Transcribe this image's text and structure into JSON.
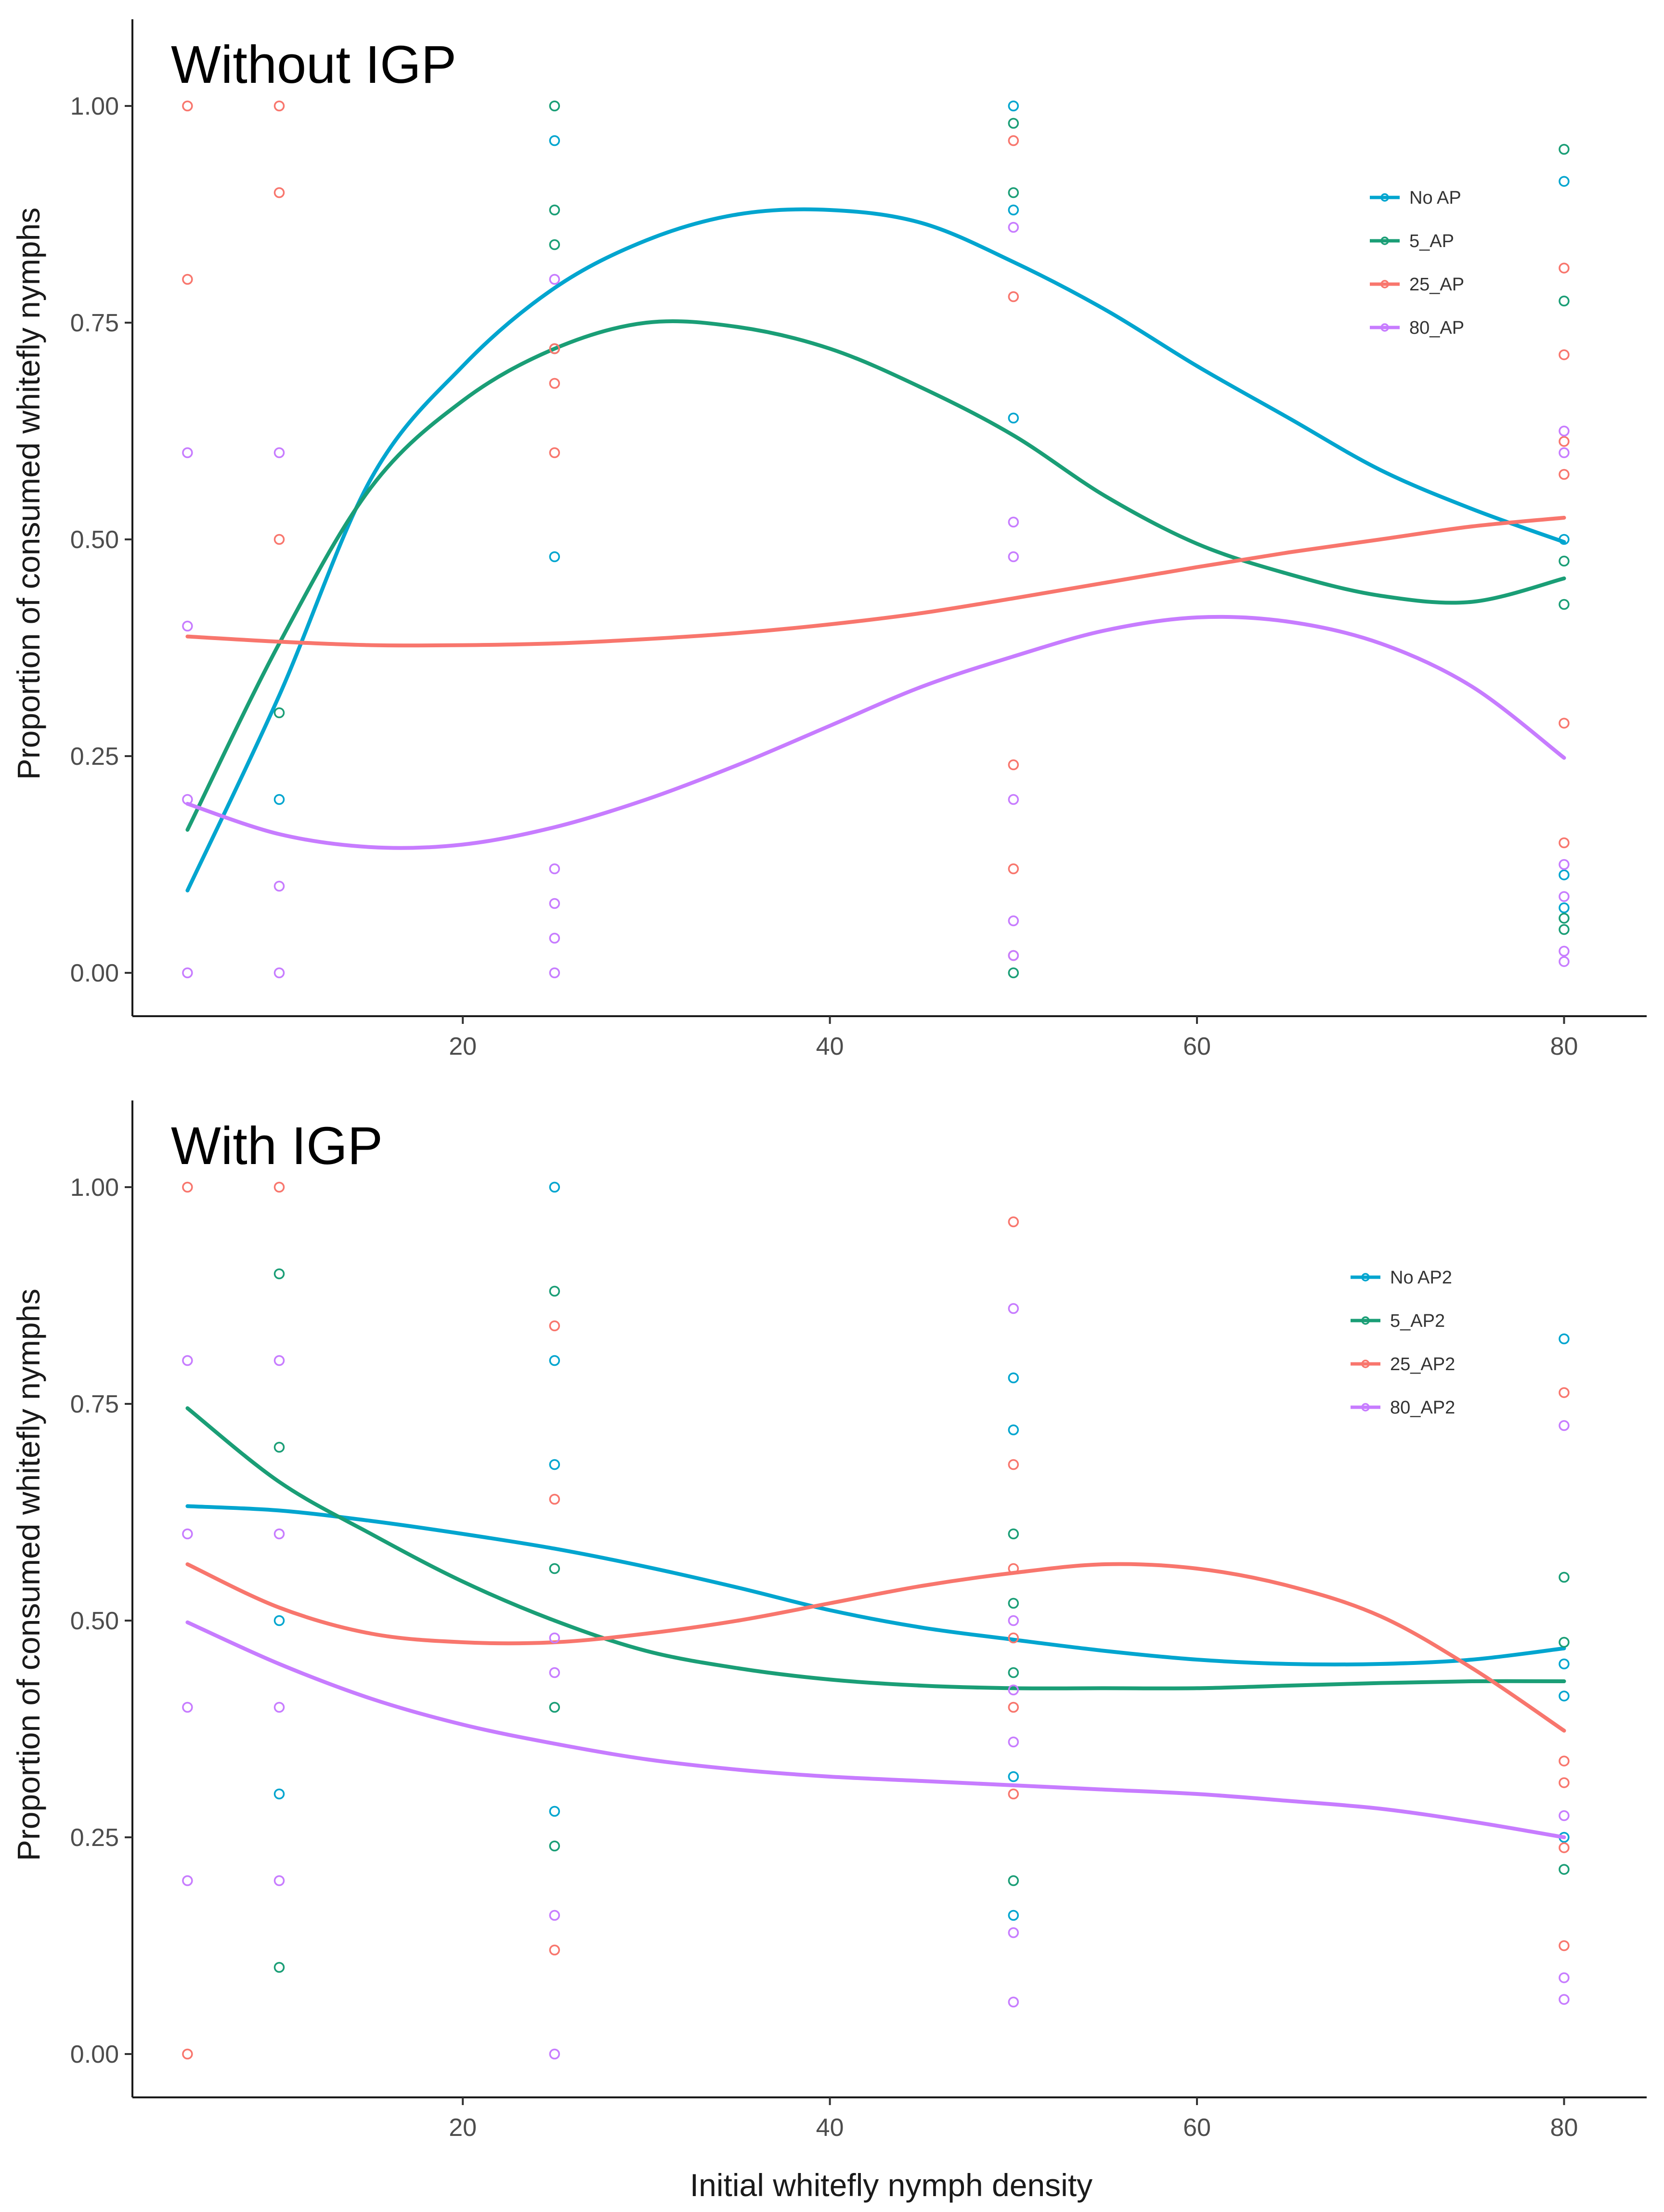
{
  "chart_data": [
    {
      "type": "scatter",
      "title": "Without IGP",
      "xlabel": "",
      "ylabel": "Proportion of consumed whitefly nymphs",
      "xlim": [
        2,
        84.5
      ],
      "ylim": [
        -0.05,
        1.1
      ],
      "xticks": [
        20,
        40,
        60,
        80
      ],
      "xtick_labels": [
        "20",
        "40",
        "60",
        "80"
      ],
      "yticks": [
        0,
        0.25,
        0.5,
        0.75,
        1.0
      ],
      "ytick_labels": [
        "0.00",
        "0.25",
        "0.50",
        "0.75",
        "1.00"
      ],
      "grid": false,
      "legend_position": "right",
      "series": [
        {
          "name": "No AP",
          "color": "#00A5CF",
          "points": [
            [
              10,
              0.2
            ],
            [
              25,
              0.96
            ],
            [
              25,
              0.48
            ],
            [
              50,
              1.0
            ],
            [
              50,
              0.88
            ],
            [
              50,
              0.64
            ],
            [
              80,
              0.913
            ],
            [
              80,
              0.5
            ],
            [
              80,
              0.113
            ],
            [
              80,
              0.075
            ]
          ],
          "curve": [
            [
              5,
              0.095
            ],
            [
              10,
              0.32
            ],
            [
              15,
              0.57
            ],
            [
              20,
              0.7
            ],
            [
              25,
              0.79
            ],
            [
              30,
              0.845
            ],
            [
              35,
              0.875
            ],
            [
              40,
              0.88
            ],
            [
              45,
              0.865
            ],
            [
              50,
              0.82
            ],
            [
              55,
              0.765
            ],
            [
              60,
              0.7
            ],
            [
              65,
              0.64
            ],
            [
              70,
              0.58
            ],
            [
              75,
              0.535
            ],
            [
              80,
              0.497
            ]
          ]
        },
        {
          "name": "5_AP",
          "color": "#1A9E76",
          "points": [
            [
              10,
              0.3
            ],
            [
              25,
              1.0
            ],
            [
              25,
              0.88
            ],
            [
              25,
              0.84
            ],
            [
              25,
              0.72
            ],
            [
              50,
              0.98
            ],
            [
              50,
              0.9
            ],
            [
              50,
              0.0
            ],
            [
              80,
              0.95
            ],
            [
              80,
              0.775
            ],
            [
              80,
              0.475
            ],
            [
              80,
              0.425
            ],
            [
              80,
              0.063
            ],
            [
              80,
              0.05
            ]
          ],
          "curve": [
            [
              5,
              0.165
            ],
            [
              10,
              0.38
            ],
            [
              15,
              0.56
            ],
            [
              20,
              0.66
            ],
            [
              25,
              0.72
            ],
            [
              30,
              0.75
            ],
            [
              35,
              0.745
            ],
            [
              40,
              0.72
            ],
            [
              45,
              0.675
            ],
            [
              50,
              0.62
            ],
            [
              55,
              0.55
            ],
            [
              60,
              0.495
            ],
            [
              65,
              0.46
            ],
            [
              70,
              0.435
            ],
            [
              75,
              0.428
            ],
            [
              80,
              0.455
            ]
          ]
        },
        {
          "name": "25_AP",
          "color": "#F8766D",
          "points": [
            [
              5,
              1.0
            ],
            [
              5,
              0.8
            ],
            [
              10,
              1.0
            ],
            [
              10,
              0.9
            ],
            [
              10,
              0.5
            ],
            [
              25,
              0.72
            ],
            [
              25,
              0.68
            ],
            [
              25,
              0.6
            ],
            [
              50,
              0.96
            ],
            [
              50,
              0.78
            ],
            [
              50,
              0.24
            ],
            [
              50,
              0.12
            ],
            [
              50,
              0.02
            ],
            [
              80,
              0.813
            ],
            [
              80,
              0.713
            ],
            [
              80,
              0.613
            ],
            [
              80,
              0.575
            ],
            [
              80,
              0.288
            ],
            [
              80,
              0.15
            ]
          ],
          "curve": [
            [
              5,
              0.388
            ],
            [
              10,
              0.382
            ],
            [
              15,
              0.378
            ],
            [
              20,
              0.378
            ],
            [
              25,
              0.38
            ],
            [
              30,
              0.385
            ],
            [
              35,
              0.392
            ],
            [
              40,
              0.402
            ],
            [
              45,
              0.415
            ],
            [
              50,
              0.432
            ],
            [
              55,
              0.45
            ],
            [
              60,
              0.468
            ],
            [
              65,
              0.485
            ],
            [
              70,
              0.5
            ],
            [
              75,
              0.515
            ],
            [
              80,
              0.525
            ]
          ]
        },
        {
          "name": "80_AP",
          "color": "#C77CFF",
          "points": [
            [
              5,
              0.6
            ],
            [
              5,
              0.4
            ],
            [
              5,
              0.2
            ],
            [
              5,
              0.0
            ],
            [
              10,
              0.6
            ],
            [
              10,
              0.1
            ],
            [
              10,
              0.0
            ],
            [
              25,
              0.8
            ],
            [
              25,
              0.12
            ],
            [
              25,
              0.08
            ],
            [
              25,
              0.04
            ],
            [
              25,
              0.0
            ],
            [
              50,
              0.86
            ],
            [
              50,
              0.52
            ],
            [
              50,
              0.48
            ],
            [
              50,
              0.2
            ],
            [
              50,
              0.06
            ],
            [
              50,
              0.02
            ],
            [
              80,
              0.625
            ],
            [
              80,
              0.6
            ],
            [
              80,
              0.125
            ],
            [
              80,
              0.088
            ],
            [
              80,
              0.025
            ],
            [
              80,
              0.013
            ]
          ],
          "curve": [
            [
              5,
              0.195
            ],
            [
              10,
              0.16
            ],
            [
              15,
              0.145
            ],
            [
              20,
              0.148
            ],
            [
              25,
              0.168
            ],
            [
              30,
              0.2
            ],
            [
              35,
              0.24
            ],
            [
              40,
              0.285
            ],
            [
              45,
              0.33
            ],
            [
              50,
              0.365
            ],
            [
              55,
              0.395
            ],
            [
              60,
              0.41
            ],
            [
              65,
              0.405
            ],
            [
              70,
              0.38
            ],
            [
              75,
              0.33
            ],
            [
              80,
              0.248
            ]
          ]
        }
      ]
    },
    {
      "type": "scatter",
      "title": "With IGP",
      "xlabel": "Initial whitefly nymph density",
      "ylabel": "Proportion of consumed whitefly nymphs",
      "xlim": [
        2,
        84.5
      ],
      "ylim": [
        -0.05,
        1.1
      ],
      "xticks": [
        20,
        40,
        60,
        80
      ],
      "xtick_labels": [
        "20",
        "40",
        "60",
        "80"
      ],
      "yticks": [
        0,
        0.25,
        0.5,
        0.75,
        1.0
      ],
      "ytick_labels": [
        "0.00",
        "0.25",
        "0.50",
        "0.75",
        "1.00"
      ],
      "grid": false,
      "legend_position": "right",
      "series": [
        {
          "name": "No AP2",
          "color": "#00A5CF",
          "points": [
            [
              10,
              0.5
            ],
            [
              10,
              0.3
            ],
            [
              25,
              1.0
            ],
            [
              25,
              0.8
            ],
            [
              25,
              0.68
            ],
            [
              25,
              0.28
            ],
            [
              50,
              0.78
            ],
            [
              50,
              0.72
            ],
            [
              50,
              0.32
            ],
            [
              50,
              0.16
            ],
            [
              80,
              0.825
            ],
            [
              80,
              0.45
            ],
            [
              80,
              0.413
            ],
            [
              80,
              0.25
            ]
          ],
          "curve": [
            [
              5,
              0.632
            ],
            [
              10,
              0.627
            ],
            [
              15,
              0.615
            ],
            [
              20,
              0.6
            ],
            [
              25,
              0.583
            ],
            [
              30,
              0.562
            ],
            [
              35,
              0.538
            ],
            [
              40,
              0.512
            ],
            [
              45,
              0.492
            ],
            [
              50,
              0.478
            ],
            [
              55,
              0.465
            ],
            [
              60,
              0.455
            ],
            [
              65,
              0.45
            ],
            [
              70,
              0.45
            ],
            [
              75,
              0.455
            ],
            [
              80,
              0.468
            ]
          ]
        },
        {
          "name": "5_AP2",
          "color": "#1A9E76",
          "points": [
            [
              10,
              0.9
            ],
            [
              10,
              0.7
            ],
            [
              10,
              0.1
            ],
            [
              25,
              0.88
            ],
            [
              25,
              0.56
            ],
            [
              25,
              0.4
            ],
            [
              25,
              0.24
            ],
            [
              50,
              0.6
            ],
            [
              50,
              0.52
            ],
            [
              50,
              0.44
            ],
            [
              50,
              0.2
            ],
            [
              80,
              0.55
            ],
            [
              80,
              0.475
            ],
            [
              80,
              0.213
            ]
          ],
          "curve": [
            [
              5,
              0.745
            ],
            [
              10,
              0.66
            ],
            [
              15,
              0.6
            ],
            [
              20,
              0.545
            ],
            [
              25,
              0.5
            ],
            [
              30,
              0.465
            ],
            [
              35,
              0.445
            ],
            [
              40,
              0.432
            ],
            [
              45,
              0.425
            ],
            [
              50,
              0.422
            ],
            [
              55,
              0.422
            ],
            [
              60,
              0.422
            ],
            [
              65,
              0.425
            ],
            [
              70,
              0.428
            ],
            [
              75,
              0.43
            ],
            [
              80,
              0.43
            ]
          ]
        },
        {
          "name": "25_AP2",
          "color": "#F8766D",
          "points": [
            [
              5,
              1.0
            ],
            [
              5,
              0.0
            ],
            [
              10,
              1.0
            ],
            [
              25,
              0.84
            ],
            [
              25,
              0.64
            ],
            [
              25,
              0.12
            ],
            [
              50,
              0.96
            ],
            [
              50,
              0.68
            ],
            [
              50,
              0.56
            ],
            [
              50,
              0.48
            ],
            [
              50,
              0.4
            ],
            [
              50,
              0.3
            ],
            [
              80,
              0.763
            ],
            [
              80,
              0.338
            ],
            [
              80,
              0.313
            ],
            [
              80,
              0.238
            ],
            [
              80,
              0.125
            ]
          ],
          "curve": [
            [
              5,
              0.565
            ],
            [
              10,
              0.515
            ],
            [
              15,
              0.485
            ],
            [
              20,
              0.475
            ],
            [
              25,
              0.475
            ],
            [
              30,
              0.485
            ],
            [
              35,
              0.5
            ],
            [
              40,
              0.52
            ],
            [
              45,
              0.54
            ],
            [
              50,
              0.555
            ],
            [
              55,
              0.565
            ],
            [
              60,
              0.56
            ],
            [
              65,
              0.54
            ],
            [
              70,
              0.505
            ],
            [
              75,
              0.445
            ],
            [
              80,
              0.373
            ]
          ]
        },
        {
          "name": "80_AP2",
          "color": "#C77CFF",
          "points": [
            [
              5,
              0.8
            ],
            [
              5,
              0.6
            ],
            [
              5,
              0.4
            ],
            [
              5,
              0.2
            ],
            [
              10,
              0.8
            ],
            [
              10,
              0.6
            ],
            [
              10,
              0.4
            ],
            [
              10,
              0.2
            ],
            [
              25,
              0.48
            ],
            [
              25,
              0.44
            ],
            [
              25,
              0.16
            ],
            [
              25,
              0.0
            ],
            [
              50,
              0.86
            ],
            [
              50,
              0.5
            ],
            [
              50,
              0.42
            ],
            [
              50,
              0.36
            ],
            [
              50,
              0.14
            ],
            [
              50,
              0.06
            ],
            [
              80,
              0.725
            ],
            [
              80,
              0.275
            ],
            [
              80,
              0.088
            ],
            [
              80,
              0.063
            ]
          ],
          "curve": [
            [
              5,
              0.498
            ],
            [
              10,
              0.45
            ],
            [
              15,
              0.41
            ],
            [
              20,
              0.38
            ],
            [
              25,
              0.358
            ],
            [
              30,
              0.34
            ],
            [
              35,
              0.328
            ],
            [
              40,
              0.32
            ],
            [
              45,
              0.315
            ],
            [
              50,
              0.31
            ],
            [
              55,
              0.305
            ],
            [
              60,
              0.3
            ],
            [
              65,
              0.292
            ],
            [
              70,
              0.283
            ],
            [
              75,
              0.268
            ],
            [
              80,
              0.25
            ]
          ]
        }
      ]
    }
  ]
}
